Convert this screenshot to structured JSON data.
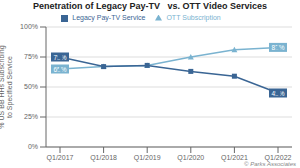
{
  "chart_data": {
    "type": "line",
    "title": "Penetration of Legacy Pay-TV   vs. OTT Video Services",
    "categories": [
      "Q1/2017",
      "Q1/2018",
      "Q1/2019",
      "Q1/2020",
      "Q1/2021",
      "Q1/2022"
    ],
    "series": [
      {
        "name": "OTT Subscription",
        "color": "#7ab3d0",
        "marker": "triangle",
        "values": [
          65,
          67,
          68,
          75,
          81,
          83
        ]
      },
      {
        "name": "Legacy Pay-TV Service",
        "color": "#3a6594",
        "marker": "square",
        "values": [
          75,
          67,
          68,
          63,
          59,
          45
        ]
      }
    ],
    "ylabel": "% US BB HHs Subscribing\nto Specified Service",
    "ylim": [
      0,
      100
    ],
    "yticks": [
      {
        "value": 0,
        "label": "0%"
      },
      {
        "value": 25,
        "label": "25%"
      },
      {
        "value": 50,
        "label": "50%"
      },
      {
        "value": 75,
        "label": "75%"
      },
      {
        "value": 100,
        "label": "100%"
      }
    ],
    "grid": true,
    "legend": "top",
    "annotations": [
      {
        "text": "65%",
        "x": "Q1/2017",
        "y": 65,
        "color": "#7ab3d0"
      },
      {
        "text": "83%",
        "x": "Q1/2022",
        "y": 83,
        "color": "#7ab3d0"
      },
      {
        "text": "75%",
        "x": "Q1/2017",
        "y": 75,
        "color": "#3a6594"
      },
      {
        "text": "45%",
        "x": "Q1/2022",
        "y": 45,
        "color": "#3a6594"
      }
    ],
    "watermark": "© Parks Associates"
  }
}
